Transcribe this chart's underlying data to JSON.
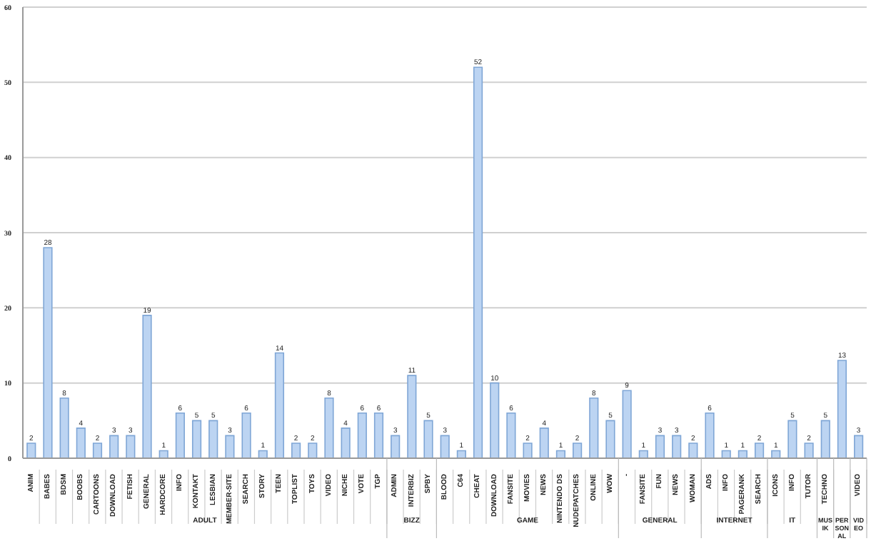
{
  "chart_data": {
    "type": "bar",
    "categories": [
      "ANIM",
      "BABES",
      "BDSM",
      "BOOBS",
      "CARTOONS",
      "DOWNLOAD",
      "FETISH",
      "GENERAL",
      "HARDCORE",
      "INFO",
      "KONTAKT",
      "LESBIAN",
      "MEMBER-SITE",
      "SEARCH",
      "STORY",
      "TEEN",
      "TOPLIST",
      "TOYS",
      "VIDEO",
      "NICHE",
      "VOTE",
      "TGP",
      "ADMIN",
      "INTERBIZ",
      "SPBY",
      "BLOOD",
      "C64",
      "CHEAT",
      "DOWNLOAD",
      "FANSITE",
      "MOVIES",
      "NEWS",
      "NINTENDO DS",
      "NUDEPATCHES",
      "ONLINE",
      "WOW",
      "-",
      "FANSITE",
      "FUN",
      "NEWS",
      "WOMAN",
      "ADS",
      "INFO",
      "PAGERANK",
      "SEARCH",
      "ICONS",
      "INFO",
      "TUTOR",
      "TECHNO",
      null,
      "VIDEO"
    ],
    "series": [
      {
        "name": "ADULT",
        "color": "#bcd4f2",
        "values": [
          2,
          28,
          8,
          4,
          2,
          3,
          3,
          19,
          1,
          6,
          5,
          5,
          3,
          6,
          1,
          14,
          2,
          2,
          8,
          4,
          6,
          6,
          null,
          null,
          null,
          null,
          null,
          null,
          null,
          null,
          null,
          null,
          null,
          null,
          null,
          null,
          null,
          null,
          null,
          null,
          null,
          null,
          null,
          null,
          null,
          null,
          null,
          null,
          null,
          null,
          null
        ]
      },
      {
        "name": "BIZZ",
        "color": "#bcd4f2",
        "values": [
          null,
          null,
          null,
          null,
          null,
          null,
          null,
          null,
          null,
          null,
          null,
          null,
          null,
          null,
          null,
          null,
          null,
          null,
          null,
          null,
          null,
          null,
          3,
          11,
          5,
          null,
          null,
          null,
          null,
          null,
          null,
          null,
          null,
          null,
          null,
          null,
          null,
          null,
          null,
          null,
          null,
          null,
          null,
          null,
          null,
          null,
          null,
          null,
          null,
          null,
          null
        ]
      },
      {
        "name": "GAME",
        "color": "#bcd4f2",
        "values": [
          null,
          null,
          null,
          null,
          null,
          null,
          null,
          null,
          null,
          null,
          null,
          null,
          null,
          null,
          null,
          null,
          null,
          null,
          null,
          null,
          null,
          null,
          null,
          null,
          null,
          3,
          1,
          52,
          10,
          6,
          2,
          4,
          1,
          2,
          8,
          5,
          null,
          null,
          null,
          null,
          null,
          null,
          null,
          null,
          null,
          null,
          null,
          null,
          null,
          null,
          null
        ]
      },
      {
        "name": "GENERAL",
        "color": "#bcd4f2",
        "values": [
          null,
          null,
          null,
          null,
          null,
          null,
          null,
          null,
          null,
          null,
          null,
          null,
          null,
          null,
          null,
          null,
          null,
          null,
          null,
          null,
          null,
          null,
          null,
          null,
          null,
          null,
          null,
          null,
          null,
          null,
          null,
          null,
          null,
          null,
          null,
          null,
          9,
          1,
          3,
          3,
          2,
          null,
          null,
          null,
          null,
          null,
          null,
          null,
          null,
          null,
          null
        ]
      },
      {
        "name": "INTERNET",
        "color": "#bcd4f2",
        "values": [
          null,
          null,
          null,
          null,
          null,
          null,
          null,
          null,
          null,
          null,
          null,
          null,
          null,
          null,
          null,
          null,
          null,
          null,
          null,
          null,
          null,
          null,
          null,
          null,
          null,
          null,
          null,
          null,
          null,
          null,
          null,
          null,
          null,
          null,
          null,
          null,
          null,
          null,
          null,
          null,
          null,
          6,
          1,
          1,
          2,
          null,
          null,
          null,
          null,
          null,
          null
        ]
      },
      {
        "name": "IT",
        "color": "#bcd4f2",
        "values": [
          null,
          null,
          null,
          null,
          null,
          null,
          null,
          null,
          null,
          null,
          null,
          null,
          null,
          null,
          null,
          null,
          null,
          null,
          null,
          null,
          null,
          null,
          null,
          null,
          null,
          null,
          null,
          null,
          null,
          null,
          null,
          null,
          null,
          null,
          null,
          null,
          null,
          null,
          null,
          null,
          null,
          null,
          null,
          null,
          null,
          1,
          5,
          2,
          null,
          null,
          null
        ]
      },
      {
        "name": "MUSIK",
        "color": "#bcd4f2",
        "values": [
          null,
          null,
          null,
          null,
          null,
          null,
          null,
          null,
          null,
          null,
          null,
          null,
          null,
          null,
          null,
          null,
          null,
          null,
          null,
          null,
          null,
          null,
          null,
          null,
          null,
          null,
          null,
          null,
          null,
          null,
          null,
          null,
          null,
          null,
          null,
          null,
          null,
          null,
          null,
          null,
          null,
          null,
          null,
          null,
          null,
          null,
          null,
          null,
          5,
          null,
          null
        ]
      },
      {
        "name": "PERSONAL",
        "color": "#bcd4f2",
        "values": [
          null,
          null,
          null,
          null,
          null,
          null,
          null,
          null,
          null,
          null,
          null,
          null,
          null,
          null,
          null,
          null,
          null,
          null,
          null,
          null,
          null,
          null,
          null,
          null,
          null,
          null,
          null,
          null,
          null,
          null,
          null,
          null,
          null,
          null,
          null,
          null,
          null,
          null,
          null,
          null,
          null,
          null,
          null,
          null,
          null,
          null,
          null,
          null,
          null,
          13,
          null
        ]
      },
      {
        "name": "VIDEO",
        "color": "#bcd4f2",
        "values": [
          null,
          null,
          null,
          null,
          null,
          null,
          null,
          null,
          null,
          null,
          null,
          null,
          null,
          null,
          null,
          null,
          null,
          null,
          null,
          null,
          null,
          null,
          null,
          null,
          null,
          null,
          null,
          null,
          null,
          null,
          null,
          null,
          null,
          null,
          null,
          null,
          null,
          null,
          null,
          null,
          null,
          null,
          null,
          null,
          null,
          null,
          null,
          null,
          null,
          null,
          3
        ]
      }
    ],
    "ylim": [
      0,
      60
    ],
    "yticks": [
      0,
      10,
      20,
      30,
      40,
      50,
      60
    ],
    "grid": "y",
    "data_labels": true
  }
}
